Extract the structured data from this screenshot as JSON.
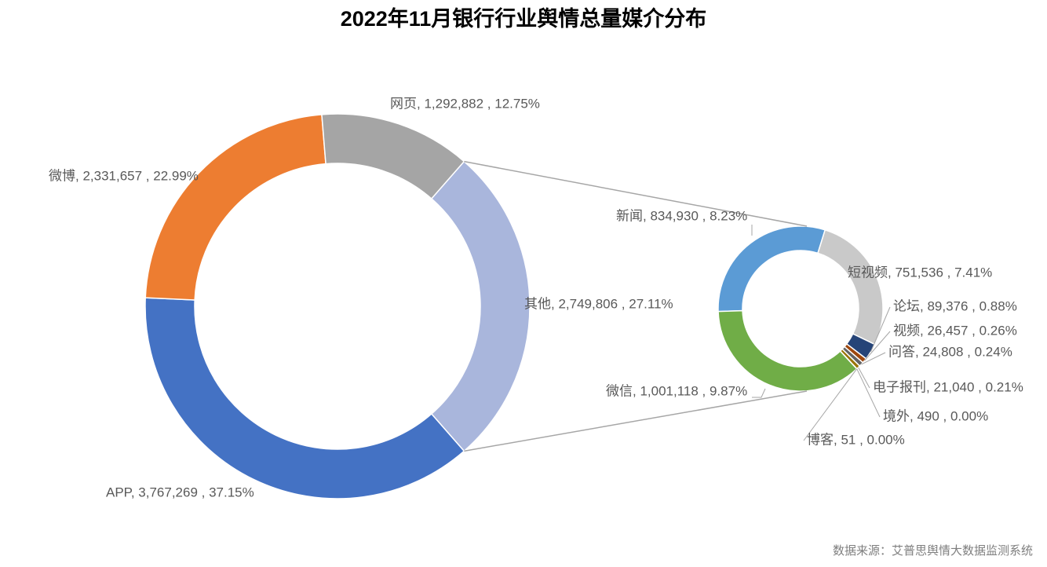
{
  "chart_data": {
    "type": "pie-of-pie",
    "title": "2022年11月银行行业舆情总量媒介分布",
    "source": "数据来源：艾普思舆情大数据监测系统",
    "main": {
      "categories": [
        "APP",
        "微博",
        "网页",
        "其他"
      ],
      "values": [
        3767269,
        2331657,
        1292882,
        2749806
      ],
      "labels": [
        "APP, 3,767,269 , 37.15%",
        "微博, 2,331,657 , 22.99%",
        "网页, 1,292,882 , 12.75%",
        "其他, 2,749,806 , 27.11%"
      ],
      "colors": [
        "#4472c4",
        "#ed7d31",
        "#a5a5a5",
        "#a9b6dc"
      ]
    },
    "secondary": {
      "categories": [
        "新闻",
        "短视频",
        "论坛",
        "视频",
        "问答",
        "电子报刊",
        "境外",
        "博客",
        "微信"
      ],
      "values": [
        834930,
        751536,
        89376,
        26457,
        24808,
        21040,
        490,
        51,
        1001118
      ],
      "labels": [
        "新闻, 834,930 , 8.23%",
        "短视频, 751,536 , 7.41%",
        "论坛, 89,376 , 0.88%",
        "视频, 26,457 , 0.26%",
        "问答, 24,808 , 0.24%",
        "电子报刊, 21,040 , 0.21%",
        "境外, 490 , 0.00%",
        "博客, 51 , 0.00%",
        "微信, 1,001,118 , 9.87%"
      ],
      "colors": [
        "#5b9bd5",
        "#c9c9c9",
        "#264478",
        "#9e480e",
        "#636363",
        "#997300",
        "#7a7a7a",
        "#ffc000",
        "#70ad47"
      ]
    }
  }
}
